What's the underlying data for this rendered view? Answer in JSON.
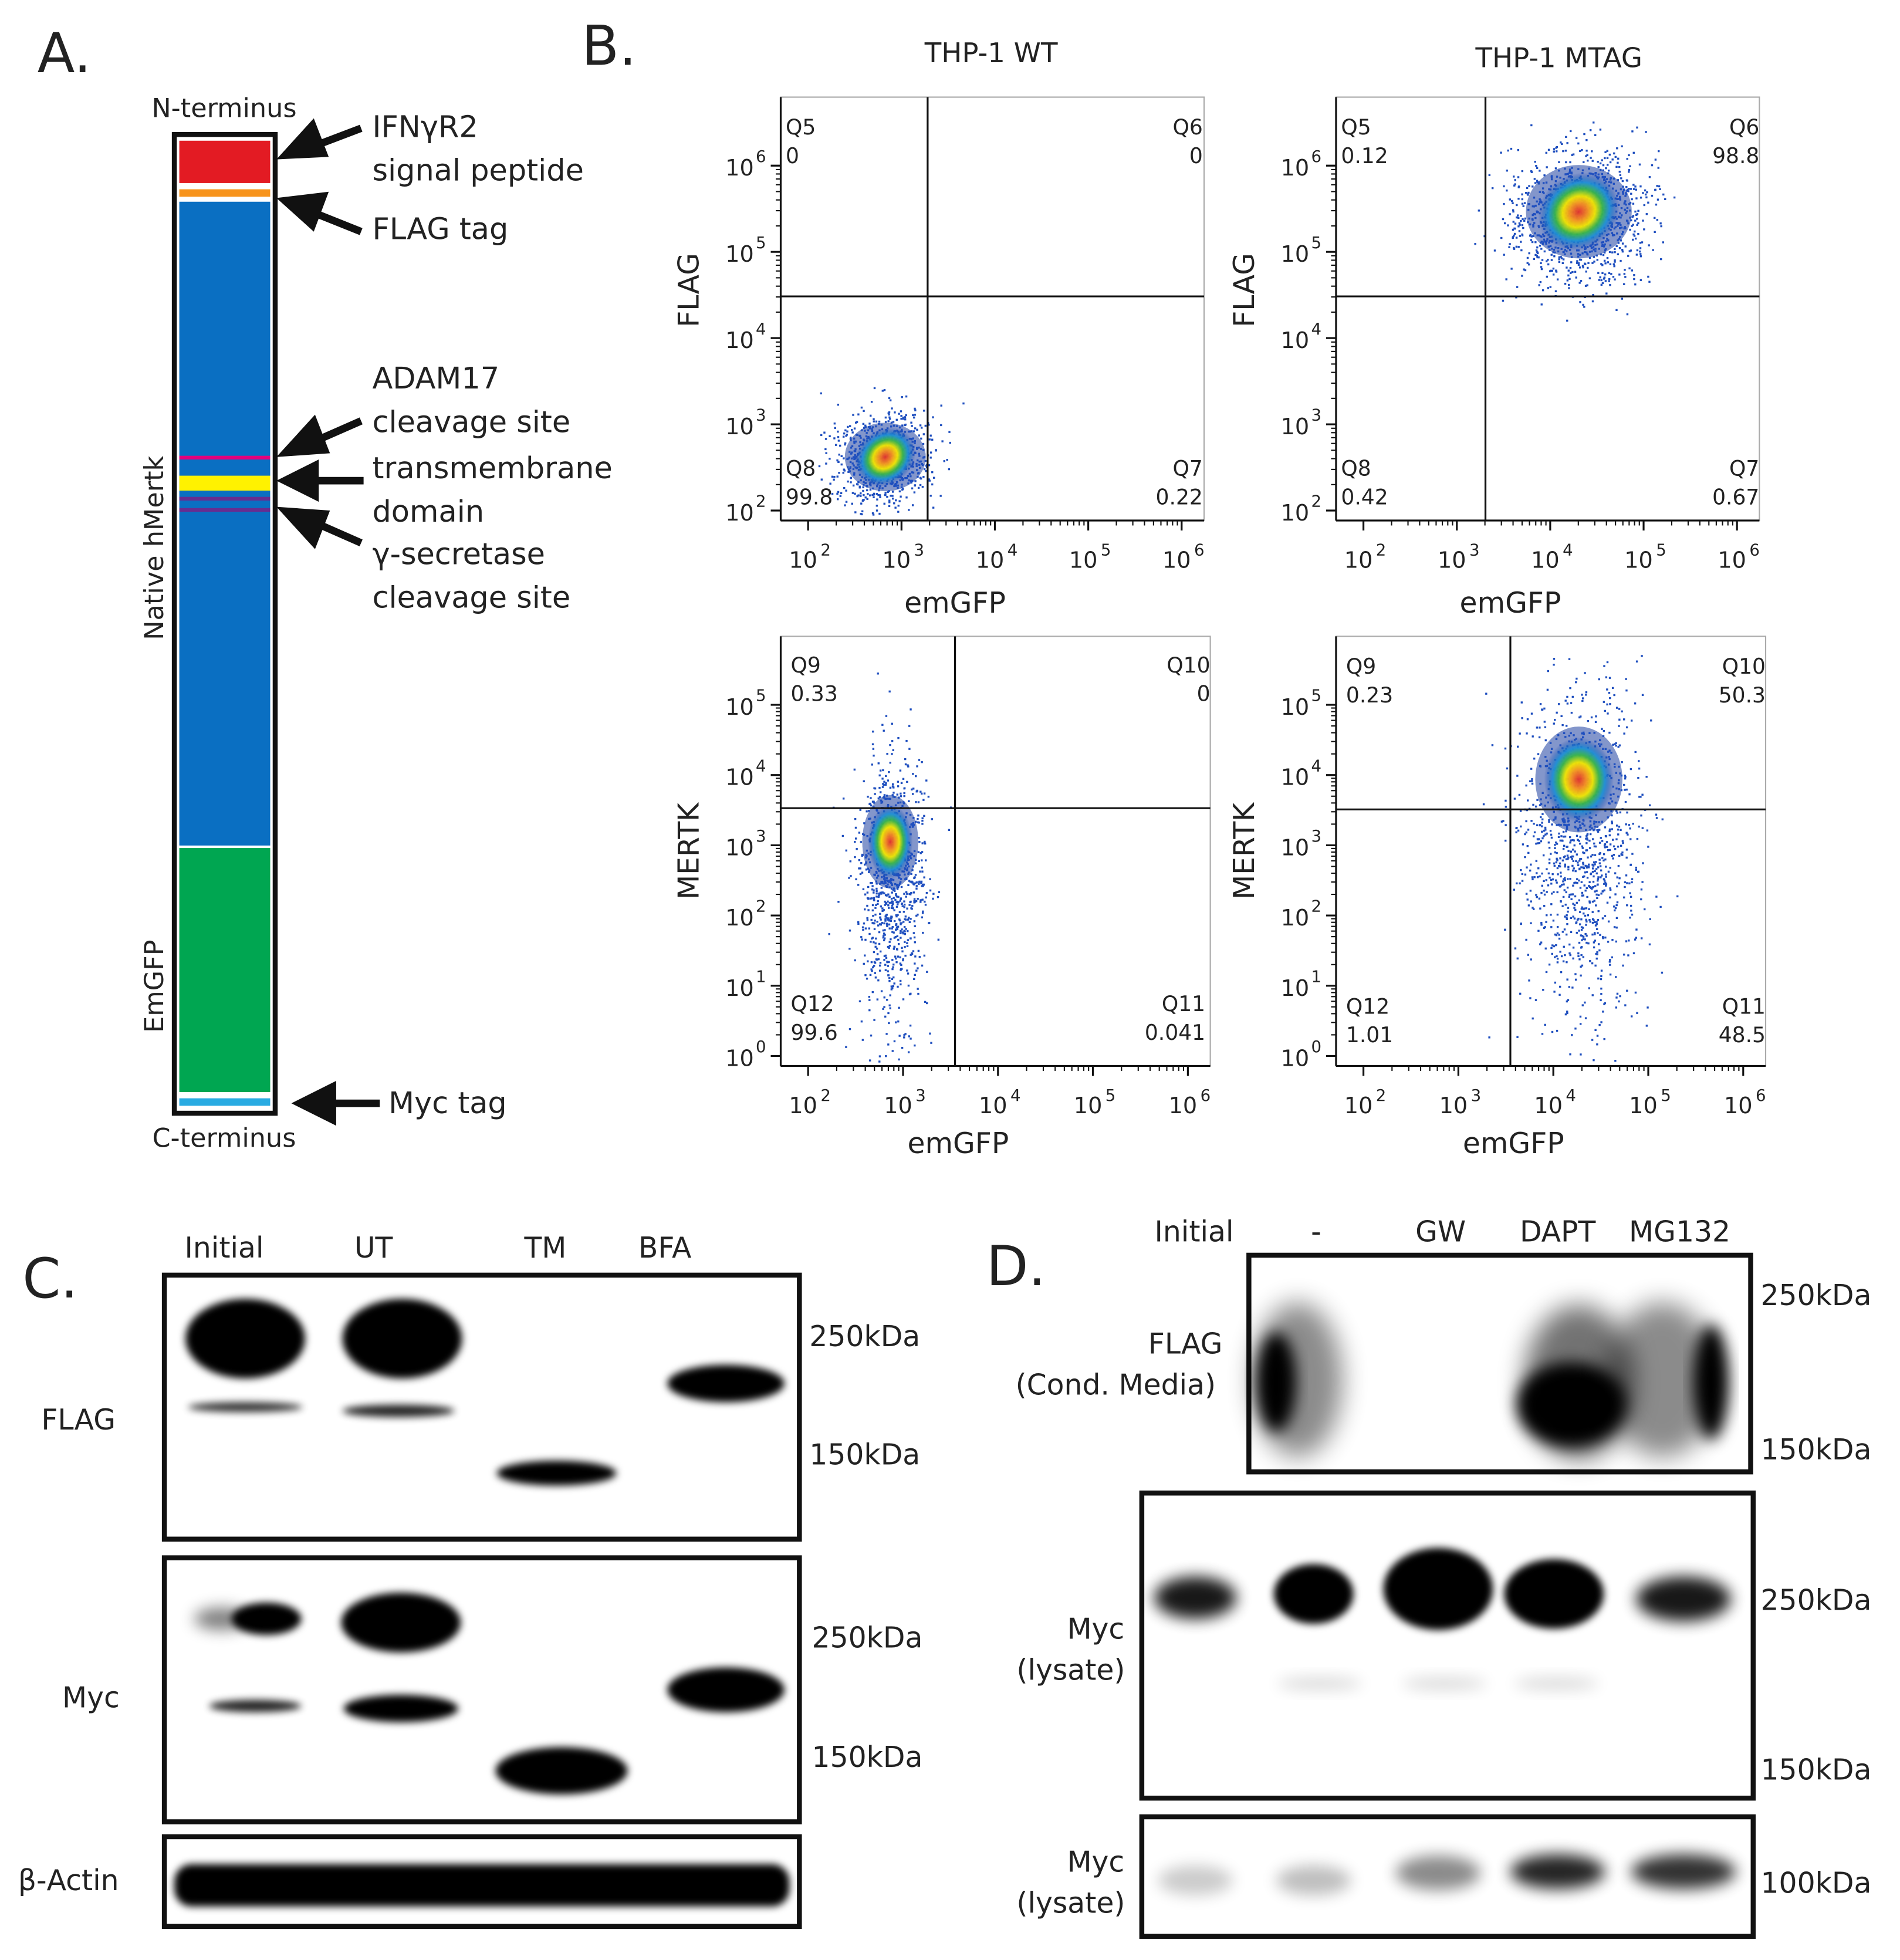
{
  "panels": {
    "A": {
      "letter": "A.",
      "n_terminus": "N-terminus",
      "c_terminus": "C-terminus",
      "region_native": "Native hMertk",
      "region_emgfp": "EmGFP",
      "annotations": {
        "signal_peptide_1": "IFNγR2",
        "signal_peptide_2": "signal peptide",
        "flag_tag": "FLAG tag",
        "adam17_1": "ADAM17",
        "adam17_2": "cleavage site",
        "tm_1": "transmembrane",
        "tm_2": "domain",
        "gamma_1": "γ-secretase",
        "gamma_2": "cleavage site",
        "myc_tag": "Myc tag"
      },
      "colors": {
        "signal_peptide": "#e31b23",
        "flag": "#f7941d",
        "native": "#0a6fc2",
        "adam17": "#e4007c",
        "tm": "#fff200",
        "gamma": "#662d91",
        "emgfp": "#00a651",
        "myc": "#29abe2"
      }
    },
    "B": {
      "letter": "B.",
      "col_titles": [
        "THP-1 WT",
        "THP-1 MTAG"
      ],
      "exp_prefix": "10",
      "plots": [
        {
          "ylabel": "FLAG",
          "xlabel": "emGFP",
          "xticks": [
            "2",
            "3",
            "4",
            "5",
            "6"
          ],
          "yticks": [
            "2",
            "3",
            "4",
            "5",
            "6"
          ],
          "quadrants": {
            "ul": [
              "Q5",
              "0"
            ],
            "ur": [
              "Q6",
              "0"
            ],
            "ll": [
              "Q8",
              "99.8"
            ],
            "lr": [
              "Q7",
              "0.22"
            ]
          }
        },
        {
          "ylabel": "FLAG",
          "xlabel": "emGFP",
          "xticks": [
            "2",
            "3",
            "4",
            "5",
            "6"
          ],
          "yticks": [
            "2",
            "3",
            "4",
            "5",
            "6"
          ],
          "quadrants": {
            "ul": [
              "Q5",
              "0.12"
            ],
            "ur": [
              "Q6",
              "98.8"
            ],
            "ll": [
              "Q8",
              "0.42"
            ],
            "lr": [
              "Q7",
              "0.67"
            ]
          }
        },
        {
          "ylabel": "MERTK",
          "xlabel": "emGFP",
          "xticks": [
            "2",
            "3",
            "4",
            "5",
            "6"
          ],
          "yticks": [
            "0",
            "1",
            "2",
            "3",
            "4",
            "5"
          ],
          "quadrants": {
            "ul": [
              "Q9",
              "0.33"
            ],
            "ur": [
              "Q10",
              "0"
            ],
            "ll": [
              "Q12",
              "99.6"
            ],
            "lr": [
              "Q11",
              "0.041"
            ]
          }
        },
        {
          "ylabel": "MERTK",
          "xlabel": "emGFP",
          "xticks": [
            "2",
            "3",
            "4",
            "5",
            "6"
          ],
          "yticks": [
            "0",
            "1",
            "2",
            "3",
            "4",
            "5"
          ],
          "quadrants": {
            "ul": [
              "Q9",
              "0.23"
            ],
            "ur": [
              "Q10",
              "50.3"
            ],
            "ll": [
              "Q12",
              "1.01"
            ],
            "lr": [
              "Q11",
              "48.5"
            ]
          }
        }
      ]
    },
    "C": {
      "letter": "C.",
      "lanes": [
        "Initial",
        "UT",
        "TM",
        "BFA"
      ],
      "blots": [
        "FLAG",
        "Myc",
        "β-Actin"
      ],
      "markers": {
        "flag": [
          "250kDa",
          "150kDa"
        ],
        "myc": [
          "250kDa",
          "150kDa"
        ]
      }
    },
    "D": {
      "letter": "D.",
      "lanes": [
        "Initial",
        "-",
        "GW",
        "DAPT",
        "MG132"
      ],
      "blots": [
        {
          "line1": "FLAG",
          "line2": "(Cond. Media)"
        },
        {
          "line1": "Myc",
          "line2": "(lysate)"
        },
        {
          "line1": "Myc",
          "line2": "(lysate)"
        }
      ],
      "markers": {
        "flag": [
          "250kDa",
          "150kDa"
        ],
        "myc": [
          "250kDa",
          "150kDa"
        ],
        "myc2": [
          "100kDa"
        ]
      }
    }
  }
}
